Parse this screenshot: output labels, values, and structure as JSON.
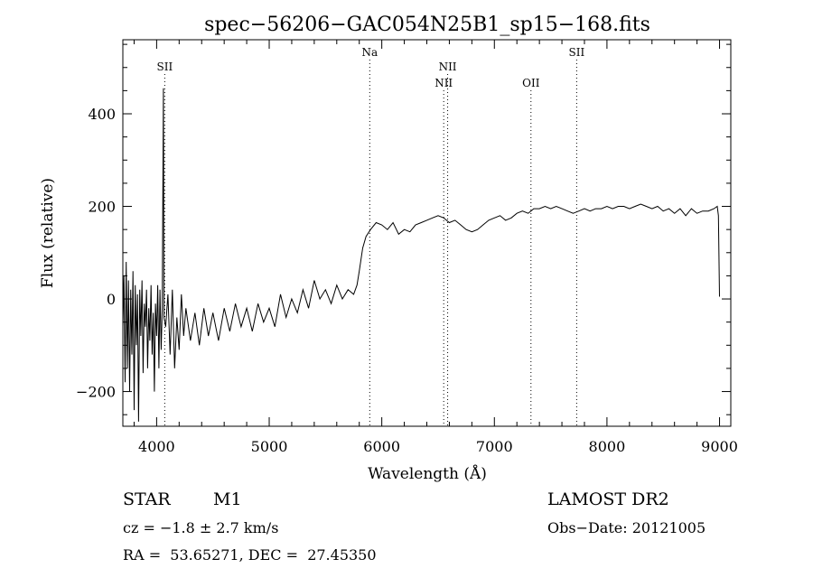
{
  "chart_data": {
    "type": "line",
    "title": "spec−56206−GAC054N25B1_sp15−168.fits",
    "xlabel": "Wavelength (Å)",
    "ylabel": "Flux (relative)",
    "xlim": [
      3700,
      9100
    ],
    "ylim": [
      -275,
      560
    ],
    "x_ticks": [
      4000,
      5000,
      6000,
      7000,
      8000,
      9000
    ],
    "y_ticks": [
      -200,
      0,
      200,
      400
    ],
    "grid": false,
    "line_color": "#000000",
    "series": [
      {
        "values_sampled": [
          [
            3700,
            -60
          ],
          [
            3710,
            50
          ],
          [
            3720,
            -180
          ],
          [
            3730,
            80
          ],
          [
            3740,
            -150
          ],
          [
            3750,
            40
          ],
          [
            3760,
            -200
          ],
          [
            3770,
            20
          ],
          [
            3780,
            -120
          ],
          [
            3790,
            60
          ],
          [
            3800,
            -240
          ],
          [
            3810,
            30
          ],
          [
            3820,
            -100
          ],
          [
            3830,
            10
          ],
          [
            3840,
            -265
          ],
          [
            3850,
            20
          ],
          [
            3860,
            -80
          ],
          [
            3870,
            40
          ],
          [
            3880,
            -160
          ],
          [
            3890,
            -10
          ],
          [
            3900,
            -60
          ],
          [
            3910,
            20
          ],
          [
            3920,
            -150
          ],
          [
            3930,
            -20
          ],
          [
            3940,
            -90
          ],
          [
            3950,
            30
          ],
          [
            3960,
            -120
          ],
          [
            3970,
            -30
          ],
          [
            3980,
            -200
          ],
          [
            3990,
            -10
          ],
          [
            4000,
            -80
          ],
          [
            4010,
            30
          ],
          [
            4020,
            -150
          ],
          [
            4030,
            20
          ],
          [
            4040,
            -110
          ],
          [
            4050,
            -20
          ],
          [
            4060,
            455
          ],
          [
            4065,
            -40
          ],
          [
            4080,
            -60
          ],
          [
            4100,
            10
          ],
          [
            4120,
            -120
          ],
          [
            4140,
            20
          ],
          [
            4160,
            -150
          ],
          [
            4180,
            -40
          ],
          [
            4200,
            -110
          ],
          [
            4220,
            10
          ],
          [
            4240,
            -80
          ],
          [
            4260,
            -20
          ],
          [
            4300,
            -90
          ],
          [
            4340,
            -30
          ],
          [
            4380,
            -100
          ],
          [
            4420,
            -20
          ],
          [
            4460,
            -80
          ],
          [
            4500,
            -30
          ],
          [
            4550,
            -90
          ],
          [
            4600,
            -20
          ],
          [
            4650,
            -70
          ],
          [
            4700,
            -10
          ],
          [
            4750,
            -60
          ],
          [
            4800,
            -20
          ],
          [
            4850,
            -70
          ],
          [
            4900,
            -10
          ],
          [
            4950,
            -50
          ],
          [
            5000,
            -20
          ],
          [
            5050,
            -60
          ],
          [
            5100,
            10
          ],
          [
            5150,
            -40
          ],
          [
            5200,
            0
          ],
          [
            5250,
            -30
          ],
          [
            5300,
            20
          ],
          [
            5350,
            -20
          ],
          [
            5400,
            40
          ],
          [
            5450,
            0
          ],
          [
            5500,
            20
          ],
          [
            5550,
            -10
          ],
          [
            5600,
            30
          ],
          [
            5650,
            0
          ],
          [
            5700,
            20
          ],
          [
            5750,
            10
          ],
          [
            5780,
            30
          ],
          [
            5800,
            60
          ],
          [
            5830,
            110
          ],
          [
            5860,
            135
          ],
          [
            5900,
            150
          ],
          [
            5950,
            165
          ],
          [
            6000,
            160
          ],
          [
            6050,
            150
          ],
          [
            6100,
            165
          ],
          [
            6150,
            140
          ],
          [
            6200,
            150
          ],
          [
            6250,
            145
          ],
          [
            6300,
            160
          ],
          [
            6350,
            165
          ],
          [
            6400,
            170
          ],
          [
            6450,
            175
          ],
          [
            6500,
            180
          ],
          [
            6550,
            175
          ],
          [
            6600,
            165
          ],
          [
            6650,
            170
          ],
          [
            6700,
            160
          ],
          [
            6750,
            150
          ],
          [
            6800,
            145
          ],
          [
            6850,
            150
          ],
          [
            6900,
            160
          ],
          [
            6950,
            170
          ],
          [
            7000,
            175
          ],
          [
            7050,
            180
          ],
          [
            7100,
            170
          ],
          [
            7150,
            175
          ],
          [
            7200,
            185
          ],
          [
            7250,
            190
          ],
          [
            7300,
            185
          ],
          [
            7350,
            195
          ],
          [
            7400,
            195
          ],
          [
            7450,
            200
          ],
          [
            7500,
            195
          ],
          [
            7550,
            200
          ],
          [
            7600,
            195
          ],
          [
            7650,
            190
          ],
          [
            7700,
            185
          ],
          [
            7750,
            190
          ],
          [
            7800,
            195
          ],
          [
            7850,
            190
          ],
          [
            7900,
            195
          ],
          [
            7950,
            195
          ],
          [
            8000,
            200
          ],
          [
            8050,
            195
          ],
          [
            8100,
            200
          ],
          [
            8150,
            200
          ],
          [
            8200,
            195
          ],
          [
            8250,
            200
          ],
          [
            8300,
            205
          ],
          [
            8350,
            200
          ],
          [
            8400,
            195
          ],
          [
            8450,
            200
          ],
          [
            8500,
            190
          ],
          [
            8550,
            195
          ],
          [
            8600,
            185
          ],
          [
            8650,
            195
          ],
          [
            8700,
            180
          ],
          [
            8750,
            195
          ],
          [
            8800,
            185
          ],
          [
            8850,
            190
          ],
          [
            8900,
            190
          ],
          [
            8950,
            195
          ],
          [
            8980,
            200
          ],
          [
            8990,
            180
          ],
          [
            9000,
            5
          ]
        ]
      }
    ],
    "annotations": [
      {
        "label": "SII",
        "wavelength": 4072,
        "row": "upper"
      },
      {
        "label": "Na",
        "wavelength": 5893,
        "row": "top"
      },
      {
        "label": "NII",
        "wavelength": 6550,
        "row": "middle"
      },
      {
        "label": "NII",
        "wavelength": 6585,
        "row": "upper"
      },
      {
        "label": "OII",
        "wavelength": 7325,
        "row": "middle"
      },
      {
        "label": "SII",
        "wavelength": 7731,
        "row": "top"
      }
    ]
  },
  "info": {
    "object_class": "STAR",
    "subclass": "M1",
    "survey": "LAMOST DR2",
    "redshift": "cz = −1.8 ± 2.7 km/s",
    "obs_date": "Obs−Date: 20121005",
    "coords": "RA =  53.65271, DEC =  27.45350"
  }
}
